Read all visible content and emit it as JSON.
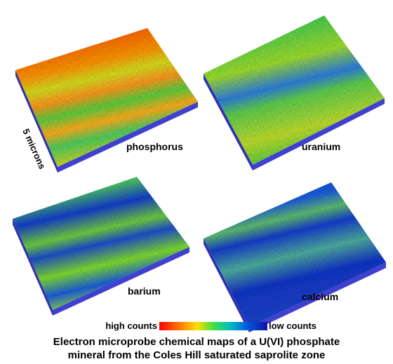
{
  "panels": [
    {
      "label": "phosphorus"
    },
    {
      "label": "uranium"
    },
    {
      "label": "barium"
    },
    {
      "label": "calcium"
    }
  ],
  "scale_label": "5 microns",
  "legend": {
    "high": "high counts",
    "low": "low counts"
  },
  "caption": [
    "Electron microprobe chemical maps of a U(VI) phosphate",
    "mineral from the Coles Hill saturated saprolite zone"
  ]
}
